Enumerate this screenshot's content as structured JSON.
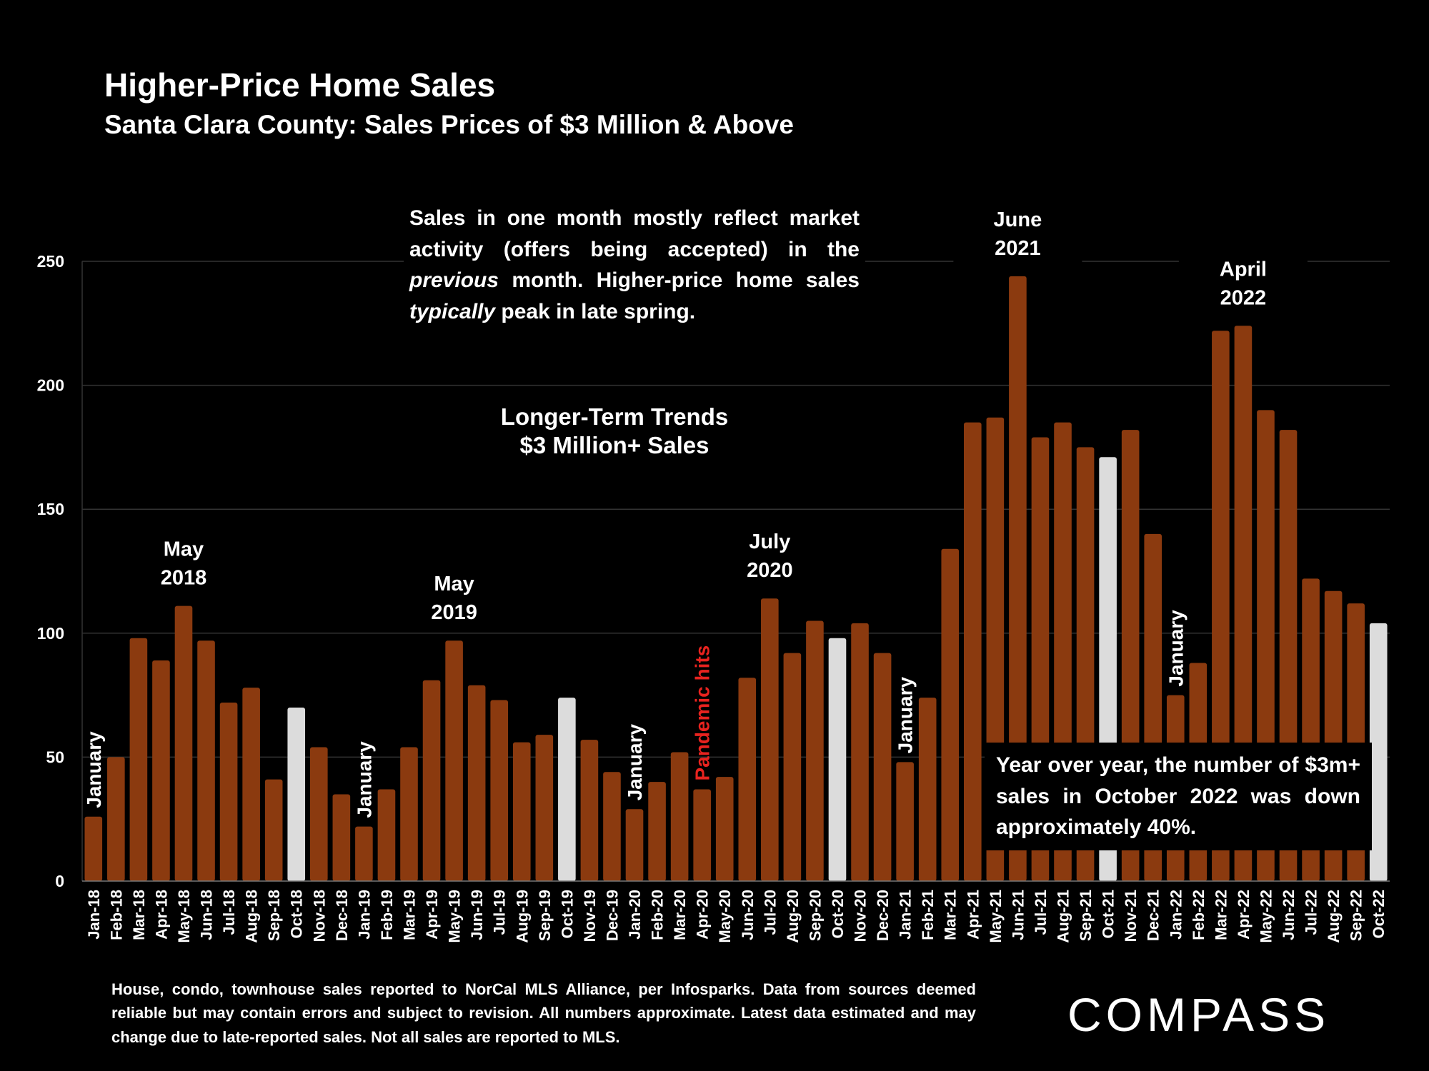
{
  "title": "Higher-Price Home Sales",
  "subtitle": "Santa Clara County: Sales Prices of $3 Million & Above",
  "notes": {
    "lag_part1": "Sales in one month mostly reflect market activity (offers being accepted) in the ",
    "lag_em1": "previous",
    "lag_part2": " month. Higher-price home sales ",
    "lag_em2": "typically",
    "lag_part3": " peak in late spring.",
    "trend_line1": "Longer-Term Trends",
    "trend_line2": "$3 Million+ Sales",
    "yoy": "Year over year, the number of $3m+ sales in October 2022 was down approximately 40%."
  },
  "footer": "House, condo, townhouse sales reported to NorCal MLS Alliance, per Infosparks. Data from sources deemed reliable but may contain errors and subject to revision. All numbers approximate. Latest data estimated and may change due to late-reported sales. Not all sales are reported to MLS.",
  "logo": "COMPASS",
  "colors": {
    "bar": "#8B3A0F",
    "highlight": "#DCDCDC",
    "pandemic": "#E8231F",
    "grid": "#333333",
    "background": "#000000"
  },
  "chart_data": {
    "type": "bar",
    "categories": [
      "Jan-18",
      "Feb-18",
      "Mar-18",
      "Apr-18",
      "May-18",
      "Jun-18",
      "Jul-18",
      "Aug-18",
      "Sep-18",
      "Oct-18",
      "Nov-18",
      "Dec-18",
      "Jan-19",
      "Feb-19",
      "Mar-19",
      "Apr-19",
      "May-19",
      "Jun-19",
      "Jul-19",
      "Aug-19",
      "Sep-19",
      "Oct-19",
      "Nov-19",
      "Dec-19",
      "Jan-20",
      "Feb-20",
      "Mar-20",
      "Apr-20",
      "May-20",
      "Jun-20",
      "Jul-20",
      "Aug-20",
      "Sep-20",
      "Oct-20",
      "Nov-20",
      "Dec-20",
      "Jan-21",
      "Feb-21",
      "Mar-21",
      "Apr-21",
      "May-21",
      "Jun-21",
      "Jul-21",
      "Aug-21",
      "Sep-21",
      "Oct-21",
      "Nov-21",
      "Dec-21",
      "Jan-22",
      "Feb-22",
      "Mar-22",
      "Apr-22",
      "May-22",
      "Jun-22",
      "Jul-22",
      "Aug-22",
      "Sep-22",
      "Oct-22"
    ],
    "values": [
      26,
      50,
      98,
      89,
      111,
      97,
      72,
      78,
      41,
      70,
      54,
      35,
      22,
      37,
      54,
      81,
      97,
      79,
      73,
      56,
      59,
      74,
      57,
      44,
      29,
      40,
      52,
      37,
      42,
      82,
      114,
      92,
      105,
      98,
      104,
      92,
      48,
      74,
      134,
      185,
      187,
      244,
      179,
      185,
      175,
      171,
      182,
      140,
      75,
      88,
      222,
      224,
      190,
      182,
      122,
      117,
      112,
      104
    ],
    "highlighted": [
      "Oct-18",
      "Oct-19",
      "Oct-20",
      "Oct-21",
      "Oct-22"
    ],
    "ylim": [
      0,
      250
    ],
    "yticks": [
      0,
      50,
      100,
      150,
      200,
      250
    ],
    "grid": true,
    "annotations": [
      {
        "category": "Jan-18",
        "text": "January",
        "orientation": "vertical"
      },
      {
        "category": "Jan-19",
        "text": "January",
        "orientation": "vertical"
      },
      {
        "category": "Jan-20",
        "text": "January",
        "orientation": "vertical"
      },
      {
        "category": "Jan-21",
        "text": "January",
        "orientation": "vertical"
      },
      {
        "category": "Jan-22",
        "text": "January",
        "orientation": "vertical"
      },
      {
        "category": "Apr-20",
        "text": "Pandemic hits",
        "orientation": "vertical",
        "color": "pandemic"
      },
      {
        "category": "May-18",
        "line1": "May",
        "line2": "2018"
      },
      {
        "category": "May-19",
        "line1": "May",
        "line2": "2019"
      },
      {
        "category": "Jul-20",
        "line1": "July",
        "line2": "2020"
      },
      {
        "category": "Jun-21",
        "line1": "June",
        "line2": "2021"
      },
      {
        "category": "Apr-22",
        "line1": "April",
        "line2": "2022"
      }
    ]
  }
}
